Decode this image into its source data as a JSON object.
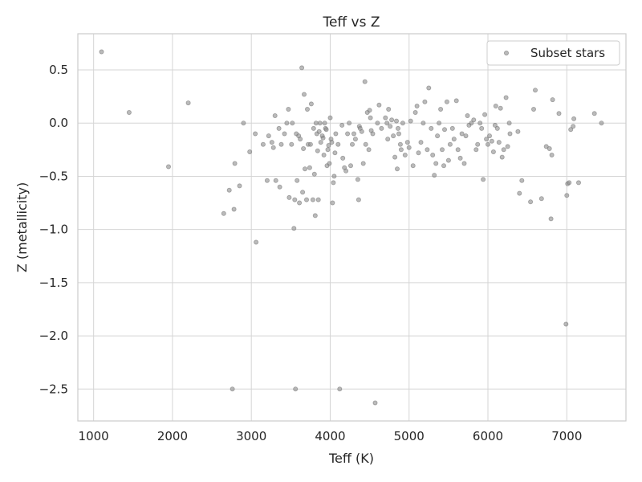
{
  "chart_data": {
    "type": "scatter",
    "title": "Teff vs Z",
    "xlabel": "Teff (K)",
    "ylabel": "Z (metallicity)",
    "xlim": [
      800,
      7750
    ],
    "ylim": [
      -2.8,
      0.84
    ],
    "xticks": [
      1000,
      2000,
      3000,
      4000,
      5000,
      6000,
      7000
    ],
    "yticks": [
      -2.5,
      -2.0,
      -1.5,
      -1.0,
      -0.5,
      0.0,
      0.5
    ],
    "xtick_labels": [
      "1000",
      "2000",
      "3000",
      "4000",
      "5000",
      "6000",
      "7000"
    ],
    "ytick_labels": [
      "−2.5",
      "−2.0",
      "−1.5",
      "−1.0",
      "−0.5",
      "0.0",
      "0.5"
    ],
    "grid": true,
    "legend_position": "top-right",
    "series": [
      {
        "name": "Subset stars",
        "color": "#8c8c8c",
        "points": [
          [
            1100,
            0.67
          ],
          [
            1450,
            0.1
          ],
          [
            1950,
            -0.41
          ],
          [
            2200,
            0.19
          ],
          [
            2650,
            -0.85
          ],
          [
            2720,
            -0.63
          ],
          [
            2760,
            -2.5
          ],
          [
            2780,
            -0.81
          ],
          [
            2790,
            -0.38
          ],
          [
            2850,
            -0.59
          ],
          [
            2900,
            0.0
          ],
          [
            2980,
            -0.27
          ],
          [
            3050,
            -0.1
          ],
          [
            3060,
            -1.12
          ],
          [
            3150,
            -0.2
          ],
          [
            3200,
            -0.54
          ],
          [
            3220,
            -0.12
          ],
          [
            3260,
            -0.18
          ],
          [
            3280,
            -0.23
          ],
          [
            3300,
            0.07
          ],
          [
            3310,
            -0.54
          ],
          [
            3350,
            -0.05
          ],
          [
            3360,
            -0.6
          ],
          [
            3380,
            -0.2
          ],
          [
            3420,
            -0.1
          ],
          [
            3450,
            0.0
          ],
          [
            3470,
            0.13
          ],
          [
            3480,
            -0.7
          ],
          [
            3510,
            -0.2
          ],
          [
            3520,
            0.0
          ],
          [
            3540,
            -0.99
          ],
          [
            3550,
            -0.72
          ],
          [
            3560,
            -2.5
          ],
          [
            3570,
            -0.1
          ],
          [
            3580,
            -0.54
          ],
          [
            3600,
            -0.12
          ],
          [
            3610,
            -0.75
          ],
          [
            3620,
            -0.15
          ],
          [
            3640,
            0.52
          ],
          [
            3650,
            -0.65
          ],
          [
            3660,
            -0.24
          ],
          [
            3670,
            0.27
          ],
          [
            3680,
            -0.43
          ],
          [
            3700,
            -0.72
          ],
          [
            3710,
            0.13
          ],
          [
            3720,
            -0.2
          ],
          [
            3740,
            -0.42
          ],
          [
            3750,
            -0.2
          ],
          [
            3760,
            0.18
          ],
          [
            3780,
            -0.72
          ],
          [
            3790,
            -0.05
          ],
          [
            3800,
            -0.48
          ],
          [
            3810,
            -0.87
          ],
          [
            3820,
            0.0
          ],
          [
            3830,
            -0.1
          ],
          [
            3840,
            -0.26
          ],
          [
            3850,
            -0.72
          ],
          [
            3860,
            -0.08
          ],
          [
            3870,
            0.0
          ],
          [
            3880,
            -0.18
          ],
          [
            3900,
            -0.12
          ],
          [
            3910,
            -0.14
          ],
          [
            3920,
            -0.3
          ],
          [
            3930,
            0.0
          ],
          [
            3940,
            -0.05
          ],
          [
            3950,
            -0.06
          ],
          [
            3960,
            -0.4
          ],
          [
            3970,
            -0.25
          ],
          [
            3980,
            -0.21
          ],
          [
            3990,
            -0.38
          ],
          [
            4000,
            0.05
          ],
          [
            4010,
            -0.15
          ],
          [
            4020,
            -0.18
          ],
          [
            4030,
            -0.75
          ],
          [
            4040,
            -0.56
          ],
          [
            4050,
            -0.5
          ],
          [
            4060,
            -0.28
          ],
          [
            4070,
            -0.1
          ],
          [
            4100,
            -0.2
          ],
          [
            4120,
            -2.5
          ],
          [
            4150,
            -0.02
          ],
          [
            4160,
            -0.33
          ],
          [
            4180,
            -0.42
          ],
          [
            4200,
            -0.45
          ],
          [
            4220,
            -0.1
          ],
          [
            4240,
            0.0
          ],
          [
            4260,
            -0.4
          ],
          [
            4280,
            -0.2
          ],
          [
            4300,
            -0.1
          ],
          [
            4320,
            -0.15
          ],
          [
            4350,
            -0.53
          ],
          [
            4360,
            -0.72
          ],
          [
            4370,
            -0.03
          ],
          [
            4380,
            -0.05
          ],
          [
            4400,
            -0.08
          ],
          [
            4420,
            -0.38
          ],
          [
            4440,
            0.39
          ],
          [
            4450,
            -0.2
          ],
          [
            4470,
            0.1
          ],
          [
            4490,
            -0.25
          ],
          [
            4500,
            0.12
          ],
          [
            4510,
            0.05
          ],
          [
            4520,
            -0.07
          ],
          [
            4540,
            -0.1
          ],
          [
            4570,
            -2.63
          ],
          [
            4600,
            0.0
          ],
          [
            4620,
            0.17
          ],
          [
            4650,
            -0.05
          ],
          [
            4700,
            0.05
          ],
          [
            4720,
            0.0
          ],
          [
            4730,
            -0.15
          ],
          [
            4740,
            0.13
          ],
          [
            4760,
            -0.03
          ],
          [
            4780,
            0.03
          ],
          [
            4800,
            -0.12
          ],
          [
            4820,
            -0.32
          ],
          [
            4840,
            0.02
          ],
          [
            4850,
            -0.43
          ],
          [
            4860,
            -0.05
          ],
          [
            4870,
            -0.1
          ],
          [
            4890,
            -0.2
          ],
          [
            4900,
            -0.25
          ],
          [
            4920,
            0.0
          ],
          [
            4950,
            -0.3
          ],
          [
            4980,
            -0.18
          ],
          [
            5000,
            -0.23
          ],
          [
            5020,
            0.02
          ],
          [
            5050,
            -0.4
          ],
          [
            5080,
            0.1
          ],
          [
            5100,
            0.16
          ],
          [
            5120,
            -0.28
          ],
          [
            5150,
            -0.18
          ],
          [
            5180,
            0.0
          ],
          [
            5200,
            0.2
          ],
          [
            5230,
            -0.25
          ],
          [
            5250,
            0.33
          ],
          [
            5280,
            -0.05
          ],
          [
            5300,
            -0.3
          ],
          [
            5320,
            -0.49
          ],
          [
            5340,
            -0.38
          ],
          [
            5360,
            -0.12
          ],
          [
            5380,
            0.0
          ],
          [
            5400,
            0.13
          ],
          [
            5420,
            -0.25
          ],
          [
            5440,
            -0.4
          ],
          [
            5450,
            -0.06
          ],
          [
            5480,
            0.2
          ],
          [
            5500,
            -0.35
          ],
          [
            5520,
            -0.2
          ],
          [
            5550,
            -0.05
          ],
          [
            5570,
            -0.15
          ],
          [
            5600,
            0.21
          ],
          [
            5620,
            -0.25
          ],
          [
            5650,
            -0.33
          ],
          [
            5670,
            -0.1
          ],
          [
            5700,
            -0.38
          ],
          [
            5720,
            -0.12
          ],
          [
            5740,
            0.07
          ],
          [
            5760,
            -0.02
          ],
          [
            5790,
            0.0
          ],
          [
            5820,
            0.03
          ],
          [
            5850,
            -0.25
          ],
          [
            5870,
            -0.2
          ],
          [
            5900,
            0.0
          ],
          [
            5920,
            -0.05
          ],
          [
            5940,
            -0.53
          ],
          [
            5960,
            0.08
          ],
          [
            5980,
            -0.15
          ],
          [
            6000,
            -0.2
          ],
          [
            6020,
            -0.12
          ],
          [
            6050,
            -0.17
          ],
          [
            6070,
            -0.27
          ],
          [
            6090,
            -0.02
          ],
          [
            6100,
            0.16
          ],
          [
            6120,
            -0.05
          ],
          [
            6140,
            -0.18
          ],
          [
            6160,
            0.14
          ],
          [
            6180,
            -0.32
          ],
          [
            6200,
            -0.25
          ],
          [
            6230,
            0.24
          ],
          [
            6250,
            -0.22
          ],
          [
            6270,
            0.0
          ],
          [
            6280,
            -0.1
          ],
          [
            6380,
            -0.08
          ],
          [
            6400,
            -0.66
          ],
          [
            6430,
            -0.54
          ],
          [
            6540,
            -0.74
          ],
          [
            6580,
            0.13
          ],
          [
            6600,
            0.31
          ],
          [
            6680,
            -0.71
          ],
          [
            6740,
            -0.22
          ],
          [
            6780,
            -0.24
          ],
          [
            6800,
            -0.9
          ],
          [
            6810,
            -0.3
          ],
          [
            6820,
            0.22
          ],
          [
            6900,
            0.09
          ],
          [
            6990,
            -1.89
          ],
          [
            7000,
            -0.68
          ],
          [
            7010,
            -0.57
          ],
          [
            7030,
            -0.56
          ],
          [
            7050,
            -0.06
          ],
          [
            7080,
            -0.03
          ],
          [
            7090,
            0.04
          ],
          [
            7150,
            -0.56
          ],
          [
            7350,
            0.09
          ],
          [
            7440,
            0.0
          ]
        ]
      }
    ]
  }
}
